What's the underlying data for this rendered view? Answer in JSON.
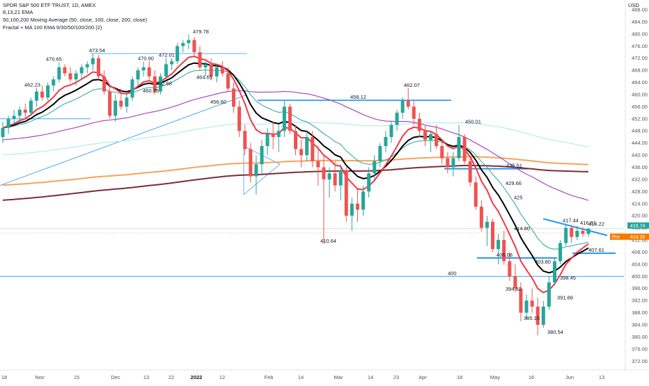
{
  "header": {
    "title": "SPDR S&P 500 ETF TRUST, 1D, AMEX",
    "ema_label": "8,13,21 EMA",
    "ma_label": "50,100,200 Moving Average (50, close, 100, close, 200, close)",
    "fractal_label": "Fractal + MA 100 EMA 9/30/50/100/200 (2)",
    "currency": "USD"
  },
  "price_badges": {
    "last": "415.74",
    "pre_label": "Pre",
    "pre": "414.35"
  },
  "colors": {
    "up": "#26a69a",
    "down": "#ef5350",
    "ema_fast": "#f23645",
    "ema_mid": "#000000",
    "ema_slow": "#26a69a",
    "ma50": "#ab47bc",
    "ma100": "#b2ebf2",
    "ma200": "#7b2d36",
    "ma200_2": "#f7a35c",
    "trend_line": "#2196f3"
  },
  "chart_data": {
    "type": "candlestick",
    "title": "SPDR S&P 500 ETF TRUST, 1D, AMEX",
    "ylim": [
      370,
      488
    ],
    "y_ticks": [
      372,
      376,
      380,
      384,
      388,
      392,
      396,
      400,
      404,
      408,
      412,
      416,
      420,
      424,
      428,
      432,
      436,
      440,
      444,
      448,
      452,
      456,
      460,
      464,
      468,
      472,
      476,
      480,
      484,
      488
    ],
    "x_ticks": [
      "18",
      "Nov",
      "15",
      "Dec",
      "13",
      "22",
      "2022",
      "12",
      "Feb",
      "14",
      "Mar",
      "14",
      "23",
      "Apr",
      "18",
      "May",
      "16",
      "Jun",
      "13"
    ],
    "annotations": [
      {
        "text": "473.54",
        "value": 473.54
      },
      {
        "text": "470.65",
        "value": 470.65
      },
      {
        "text": "462.23",
        "value": 462.23
      },
      {
        "text": "470.90",
        "value": 470.9
      },
      {
        "text": "472.01",
        "value": 472.01
      },
      {
        "text": "479.78",
        "value": 479.78
      },
      {
        "text": "460.25",
        "value": 460.25
      },
      {
        "text": "462.68",
        "value": 462.68
      },
      {
        "text": "464.65",
        "value": 464.65
      },
      {
        "text": "456.60",
        "value": 456.6
      },
      {
        "text": "458.12",
        "value": 458.12
      },
      {
        "text": "462.07",
        "value": 462.07
      },
      {
        "text": "450.01",
        "value": 450.01
      },
      {
        "text": "435.51",
        "value": 435.51
      },
      {
        "text": "429.66",
        "value": 429.66
      },
      {
        "text": "425",
        "value": 425
      },
      {
        "text": "414.80",
        "value": 414.8
      },
      {
        "text": "417.44",
        "value": 417.44
      },
      {
        "text": "416.61",
        "value": 416.61
      },
      {
        "text": "416.22",
        "value": 416.22
      },
      {
        "text": "407.61",
        "value": 407.61
      },
      {
        "text": "406.08",
        "value": 406.08
      },
      {
        "text": "403.80",
        "value": 403.8
      },
      {
        "text": "400",
        "value": 400
      },
      {
        "text": "398.45",
        "value": 398.45
      },
      {
        "text": "394.82",
        "value": 394.82
      },
      {
        "text": "391.89",
        "value": 391.89
      },
      {
        "text": "385.15",
        "value": 385.15
      },
      {
        "text": "380.54",
        "value": 380.54
      },
      {
        "text": "410.64",
        "value": 410.64
      }
    ],
    "candles": [
      [
        446,
        451,
        444,
        449
      ],
      [
        449,
        453,
        447,
        452
      ],
      [
        452,
        455,
        450,
        453
      ],
      [
        453,
        456,
        451,
        455
      ],
      [
        455,
        457,
        452,
        454
      ],
      [
        454,
        459,
        453,
        458
      ],
      [
        458,
        462.23,
        456,
        461
      ],
      [
        461,
        463,
        458,
        459
      ],
      [
        459,
        464,
        458,
        463
      ],
      [
        463,
        466,
        461,
        465
      ],
      [
        465,
        470.65,
        464,
        469
      ],
      [
        469,
        470,
        466,
        467
      ],
      [
        467,
        469,
        464,
        465
      ],
      [
        465,
        468,
        463,
        467
      ],
      [
        467,
        470,
        465,
        469
      ],
      [
        469,
        471,
        467,
        470
      ],
      [
        470,
        473.54,
        468,
        472
      ],
      [
        472,
        473,
        465,
        466
      ],
      [
        466,
        468,
        460,
        461
      ],
      [
        461,
        463,
        452,
        453
      ],
      [
        453,
        460,
        451,
        458
      ],
      [
        458,
        462,
        455,
        456
      ],
      [
        456,
        460,
        454,
        459
      ],
      [
        459,
        466,
        458,
        465
      ],
      [
        465,
        469,
        463,
        468
      ],
      [
        468,
        470.9,
        466,
        469
      ],
      [
        469,
        471,
        465,
        466
      ],
      [
        466,
        468,
        460,
        461
      ],
      [
        461,
        467,
        460,
        466
      ],
      [
        466,
        472.01,
        465,
        470
      ],
      [
        470,
        472,
        468,
        471
      ],
      [
        471,
        477,
        470,
        476
      ],
      [
        476,
        478,
        474,
        477
      ],
      [
        477,
        479.78,
        475,
        478
      ],
      [
        478,
        479,
        473,
        474
      ],
      [
        474,
        476,
        468,
        469
      ],
      [
        469,
        471,
        466,
        470
      ],
      [
        470,
        472,
        464.65,
        466
      ],
      [
        466,
        470,
        464,
        469
      ],
      [
        469,
        471,
        466,
        467
      ],
      [
        467,
        469,
        461,
        462
      ],
      [
        462,
        464,
        454,
        456
      ],
      [
        456,
        458,
        446,
        448
      ],
      [
        448,
        450,
        440,
        442
      ],
      [
        442,
        444,
        431,
        433
      ],
      [
        433,
        440,
        427,
        437
      ],
      [
        437,
        445,
        434,
        443
      ],
      [
        443,
        449,
        440,
        447
      ],
      [
        447,
        451,
        442,
        446
      ],
      [
        446,
        450,
        441,
        448
      ],
      [
        448,
        458.12,
        446,
        456
      ],
      [
        456,
        457,
        447,
        448
      ],
      [
        448,
        450,
        440,
        442
      ],
      [
        442,
        445,
        436,
        440
      ],
      [
        440,
        448,
        438,
        446
      ],
      [
        446,
        448,
        436,
        438
      ],
      [
        438,
        443,
        430,
        436
      ],
      [
        436,
        440,
        410.64,
        432
      ],
      [
        432,
        436,
        426,
        434
      ],
      [
        434,
        438,
        428,
        430
      ],
      [
        430,
        437,
        425,
        435
      ],
      [
        435,
        436,
        418,
        420
      ],
      [
        420,
        426,
        415,
        424
      ],
      [
        424,
        429,
        418,
        422
      ],
      [
        422,
        430,
        420,
        428
      ],
      [
        428,
        436,
        426,
        434
      ],
      [
        434,
        440,
        432,
        438
      ],
      [
        438,
        444,
        436,
        443
      ],
      [
        443,
        448,
        441,
        446
      ],
      [
        446,
        451,
        444,
        450
      ],
      [
        450,
        455,
        448,
        454
      ],
      [
        454,
        459,
        452,
        458
      ],
      [
        458,
        462.07,
        455,
        456
      ],
      [
        456,
        458,
        450,
        452
      ],
      [
        452,
        454,
        446,
        448
      ],
      [
        448,
        450,
        443,
        445
      ],
      [
        445,
        448,
        441,
        447
      ],
      [
        447,
        450,
        442,
        443
      ],
      [
        443,
        445,
        437,
        439
      ],
      [
        439,
        441,
        434,
        436
      ],
      [
        436,
        441,
        433,
        439
      ],
      [
        439,
        450.01,
        438,
        446
      ],
      [
        446,
        447,
        437,
        438
      ],
      [
        438,
        439,
        429.66,
        431
      ],
      [
        431,
        433,
        422,
        423
      ],
      [
        423,
        425,
        414.8,
        416
      ],
      [
        416,
        420,
        410,
        418
      ],
      [
        418,
        419,
        408,
        409
      ],
      [
        409,
        414,
        404,
        412
      ],
      [
        412,
        415,
        403.8,
        405
      ],
      [
        405,
        408,
        398.45,
        400
      ],
      [
        400,
        404,
        394.82,
        396
      ],
      [
        396,
        398,
        385.15,
        388
      ],
      [
        388,
        394,
        386,
        392
      ],
      [
        392,
        396,
        388,
        390
      ],
      [
        390,
        393,
        380.54,
        384
      ],
      [
        384,
        391.89,
        383,
        390
      ],
      [
        390,
        400,
        389,
        398
      ],
      [
        398,
        406.08,
        397,
        405
      ],
      [
        405,
        412,
        404,
        411
      ],
      [
        411,
        417.44,
        410,
        416
      ],
      [
        416,
        417,
        411,
        413
      ],
      [
        413,
        416.61,
        412,
        415
      ],
      [
        415,
        416.22,
        413,
        414
      ],
      [
        414,
        416,
        413,
        415.74
      ]
    ]
  }
}
